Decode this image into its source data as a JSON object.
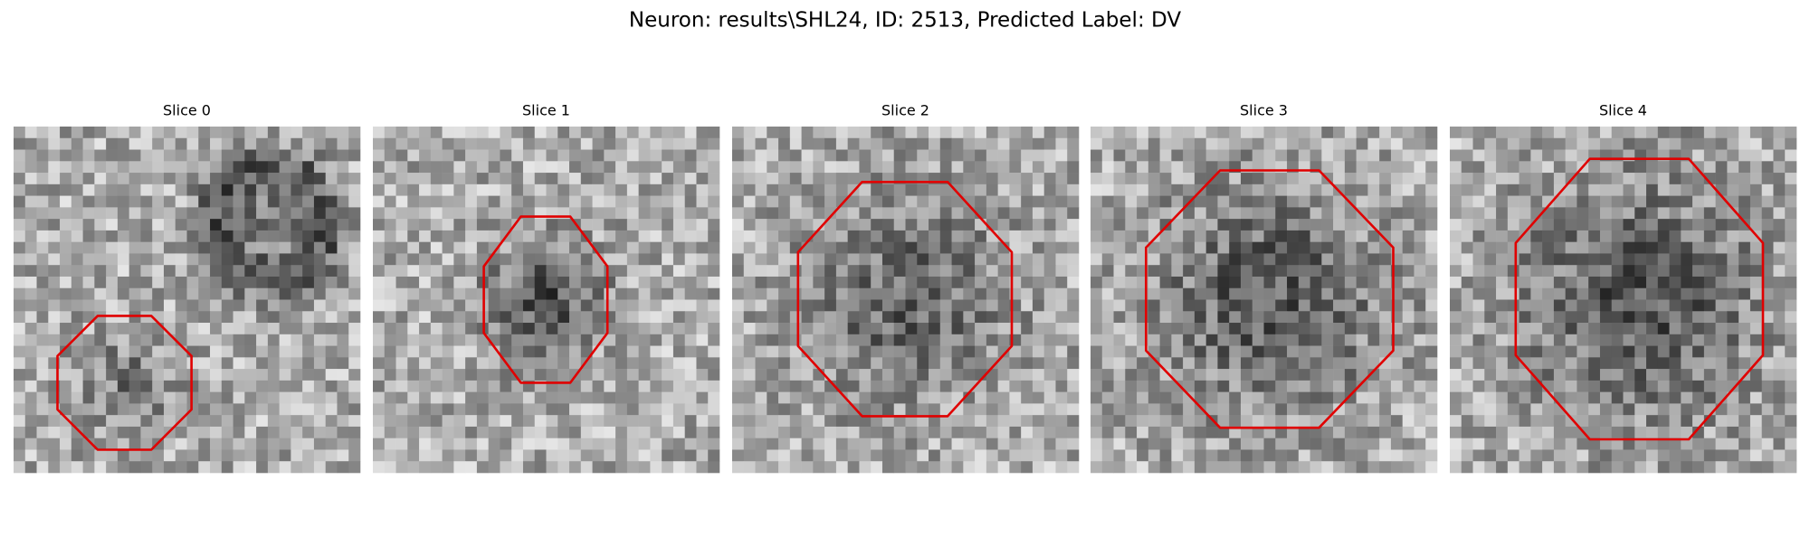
{
  "title": "Neuron: results\\SHL24, ID: 2513, Predicted Label: DV",
  "panels": [
    {
      "title": "Slice 0"
    },
    {
      "title": "Slice 1"
    },
    {
      "title": "Slice 2"
    },
    {
      "title": "Slice 3"
    },
    {
      "title": "Slice 4"
    }
  ]
}
